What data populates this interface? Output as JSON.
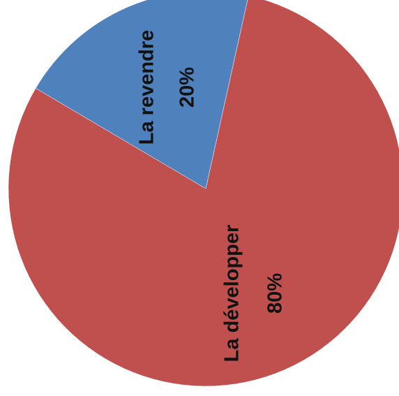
{
  "chart_data": {
    "type": "pie",
    "categories": [
      "La développer",
      "La revendre"
    ],
    "values": [
      80,
      20
    ],
    "value_labels": [
      "80%",
      "20%"
    ],
    "colors": [
      "#c0504d",
      "#4f81bd"
    ]
  }
}
